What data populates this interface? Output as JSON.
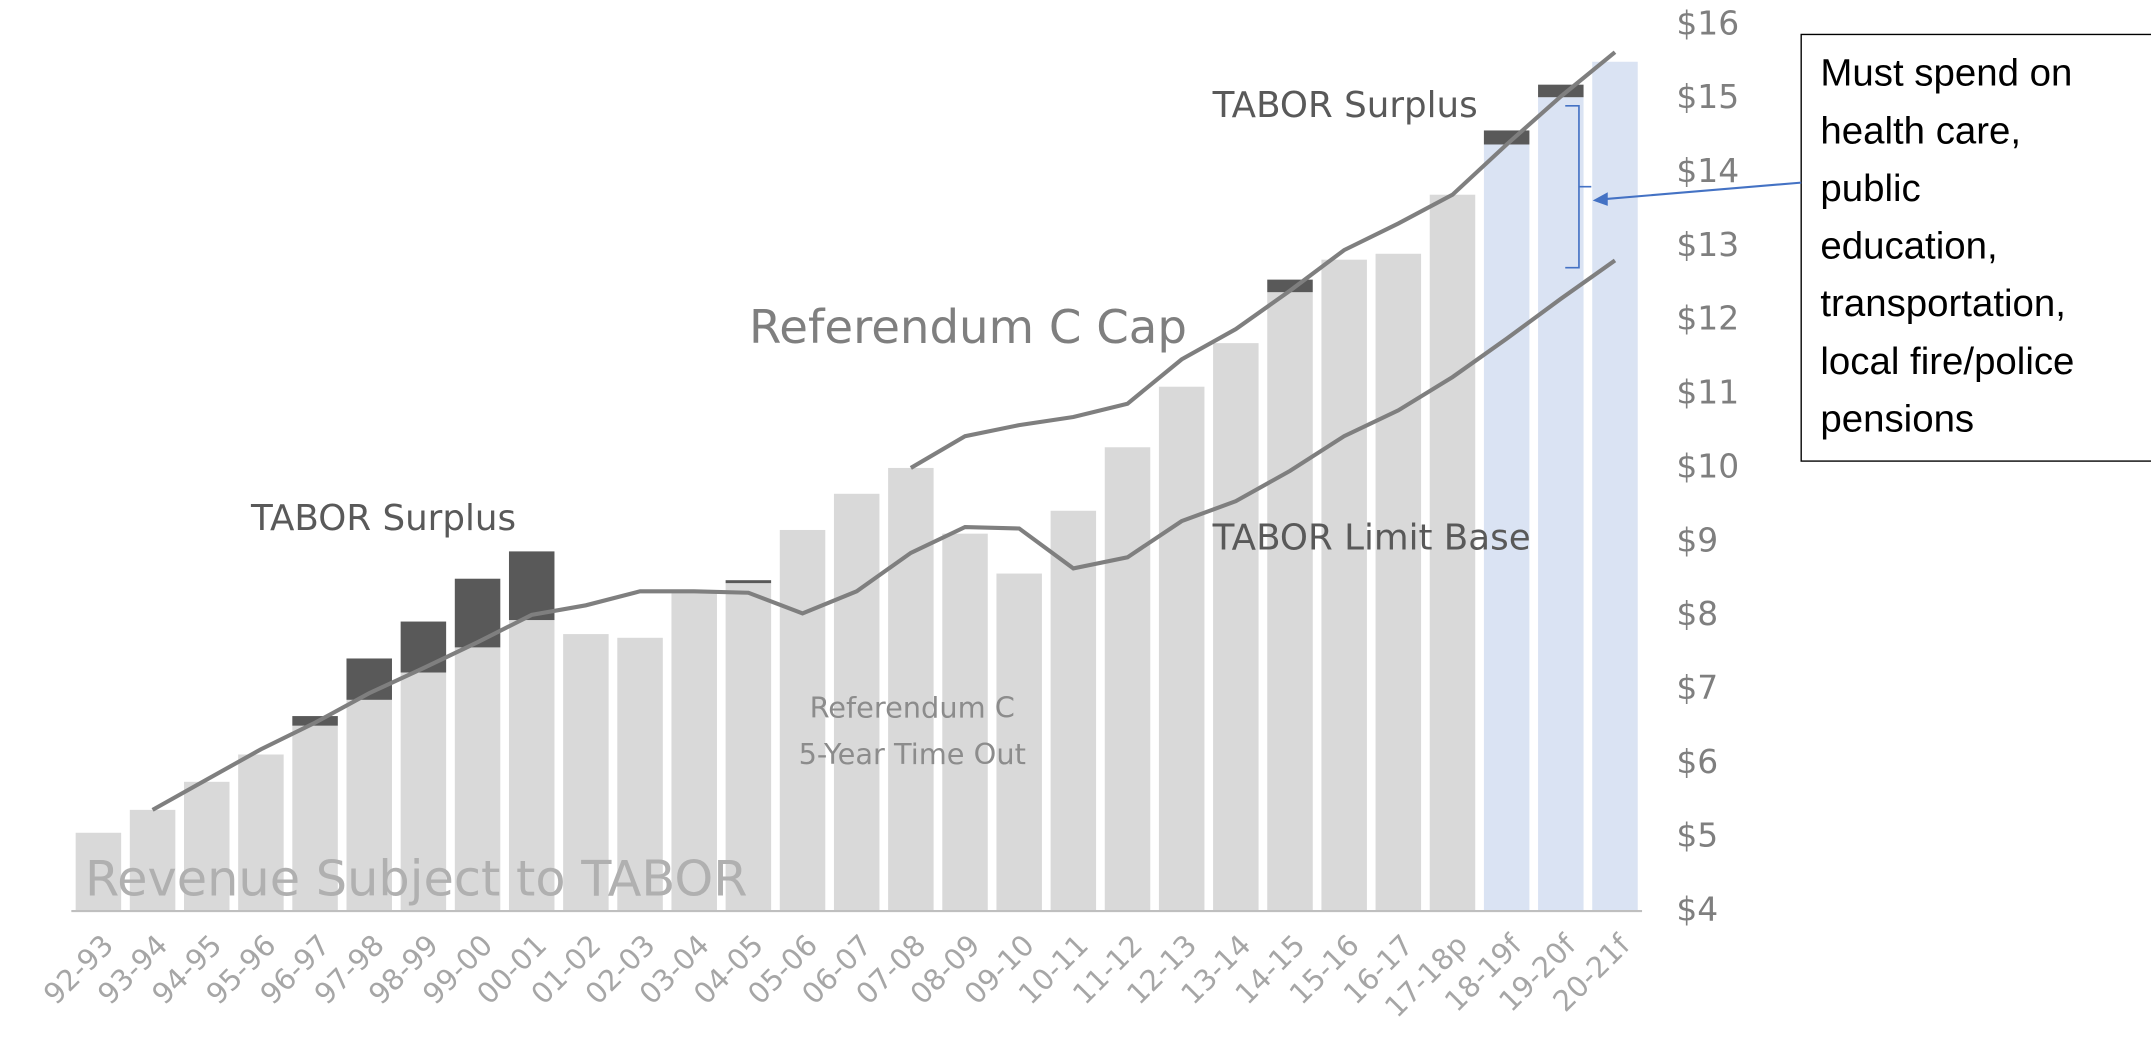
{
  "chart_data": {
    "type": "bar",
    "categories": [
      "92-93",
      "93-94",
      "94-95",
      "95-96",
      "96-97",
      "97-98",
      "98-99",
      "99-00",
      "00-01",
      "01-02",
      "02-03",
      "03-04",
      "04-05",
      "05-06",
      "06-07",
      "07-08",
      "08-09",
      "09-10",
      "10-11",
      "11-12",
      "12-13",
      "13-14",
      "14-15",
      "15-16",
      "16-17",
      "17-18p",
      "18-19f",
      "19-20f",
      "20-21f"
    ],
    "series": [
      {
        "name": "Revenue Subject to TABOR",
        "kind": "bar",
        "colors": [
          "#d9d9d9",
          "#d9d9d9",
          "#d9d9d9",
          "#d9d9d9",
          "#d9d9d9",
          "#d9d9d9",
          "#d9d9d9",
          "#d9d9d9",
          "#d9d9d9",
          "#d9d9d9",
          "#d9d9d9",
          "#d9d9d9",
          "#d9d9d9",
          "#d9d9d9",
          "#d9d9d9",
          "#d9d9d9",
          "#d9d9d9",
          "#d9d9d9",
          "#d9d9d9",
          "#d9d9d9",
          "#d9d9d9",
          "#d9d9d9",
          "#d9d9d9",
          "#d9d9d9",
          "#d9d9d9",
          "#d9d9d9",
          "#dae3f3",
          "#dae3f3",
          "#dae3f3"
        ],
        "values": [
          5.06,
          5.37,
          5.75,
          6.12,
          6.51,
          6.86,
          7.23,
          7.57,
          7.94,
          7.75,
          7.7,
          8.31,
          8.44,
          9.16,
          9.65,
          10.0,
          9.11,
          8.57,
          9.42,
          10.28,
          11.1,
          11.69,
          12.38,
          12.82,
          12.9,
          13.7,
          14.38,
          15.02,
          15.5
        ]
      },
      {
        "name": "TABOR Surplus",
        "kind": "stacked_bar",
        "color": "#595959",
        "values": [
          null,
          null,
          null,
          null,
          0.13,
          0.56,
          0.69,
          0.93,
          0.93,
          null,
          null,
          null,
          0.04,
          null,
          null,
          null,
          null,
          null,
          null,
          null,
          null,
          null,
          0.17,
          null,
          null,
          null,
          0.19,
          0.17,
          null
        ]
      },
      {
        "name": "Referendum C Cap",
        "kind": "line",
        "color": "#7f7f7f",
        "values": [
          null,
          null,
          null,
          null,
          null,
          null,
          null,
          null,
          null,
          null,
          null,
          null,
          null,
          null,
          null,
          10.0,
          10.43,
          10.58,
          10.69,
          10.87,
          11.47,
          11.88,
          12.4,
          12.95,
          13.31,
          13.7,
          14.38,
          15.03,
          15.63
        ]
      },
      {
        "name": "TABOR Limit Base",
        "kind": "line",
        "color": "#7f7f7f",
        "values": [
          null,
          5.37,
          5.78,
          6.19,
          6.55,
          6.95,
          7.29,
          7.64,
          8.01,
          8.14,
          8.33,
          8.33,
          8.31,
          8.03,
          8.33,
          8.85,
          9.2,
          9.18,
          8.64,
          8.79,
          9.28,
          9.55,
          9.96,
          10.43,
          10.78,
          11.23,
          11.75,
          12.29,
          12.81
        ]
      }
    ],
    "ylim": [
      4,
      16
    ],
    "yticks": [
      {
        "value": 4,
        "label": "$4"
      },
      {
        "value": 5,
        "label": "$5"
      },
      {
        "value": 6,
        "label": "$6"
      },
      {
        "value": 7,
        "label": "$7"
      },
      {
        "value": 8,
        "label": "$8"
      },
      {
        "value": 9,
        "label": "$9"
      },
      {
        "value": 10,
        "label": "$10"
      },
      {
        "value": 11,
        "label": "$11"
      },
      {
        "value": 12,
        "label": "$12"
      },
      {
        "value": 13,
        "label": "$13"
      },
      {
        "value": 14,
        "label": "$14"
      },
      {
        "value": 15,
        "label": "$15"
      },
      {
        "value": 16,
        "label": "$16"
      }
    ],
    "y_axis_side": "right",
    "grid": false,
    "annotations": [
      "Referendum C",
      "5-Year Time Out"
    ],
    "callout": [
      "Must spend on",
      "health care,",
      "public",
      "education,",
      "transportation,",
      "local fire/police",
      "pensions"
    ]
  }
}
